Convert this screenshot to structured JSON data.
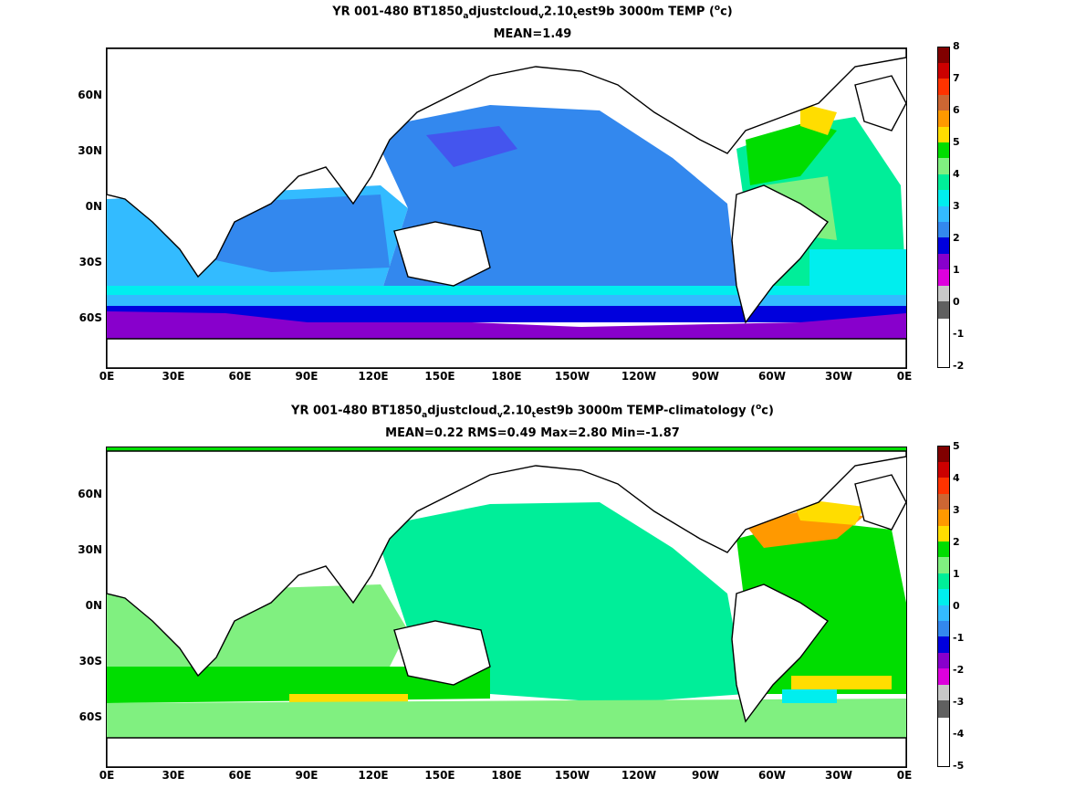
{
  "chart_data": [
    {
      "type": "heatmap",
      "title": {
        "part1": "YR 001-480 BT1850",
        "sub1": "a",
        "part2": "djustcloud",
        "sub2": "v",
        "part3": "2.10",
        "sub3": "t",
        "part4": "est9b 3000m TEMP (",
        "sup": "o",
        "part5": "c)"
      },
      "subtitle": "MEAN=1.49",
      "x_ticks": [
        "0E",
        "30E",
        "60E",
        "90E",
        "120E",
        "150E",
        "180E",
        "150W",
        "120W",
        "90W",
        "60W",
        "30W",
        "0E"
      ],
      "y_ticks": [
        "60N",
        "30N",
        "0N",
        "30S",
        "60S"
      ],
      "xlim": [
        0,
        360
      ],
      "ylim": [
        -78,
        88
      ],
      "colorbar": {
        "ticks": [
          "8",
          "7",
          "6",
          "5",
          "4",
          "3",
          "2",
          "1",
          "0",
          "-1",
          "-2"
        ],
        "range": [
          -2,
          8
        ],
        "colors": [
          "#800000",
          "#cc0000",
          "#ff3300",
          "#cc6633",
          "#ff9900",
          "#ffdd00",
          "#00dd00",
          "#80f080",
          "#00ee99",
          "#00eeee",
          "#33bbff",
          "#3388ee",
          "#0000dd",
          "#8800cc",
          "#dd00dd",
          "#c8c8c8",
          "#606060"
        ]
      },
      "field_mean": 1.49
    },
    {
      "type": "heatmap",
      "title": {
        "part1": "YR 001-480 BT1850",
        "sub1": "a",
        "part2": "djustcloud",
        "sub2": "v",
        "part3": "2.10",
        "sub3": "t",
        "part4": "est9b 3000m TEMP-climatology (",
        "sup": "o",
        "part5": "c)"
      },
      "subtitle": "MEAN=0.22   RMS=0.49   Max=2.80   Min=-1.87",
      "x_ticks": [
        "0E",
        "30E",
        "60E",
        "90E",
        "120E",
        "150E",
        "180E",
        "150W",
        "120W",
        "90W",
        "60W",
        "30W",
        "0E"
      ],
      "y_ticks": [
        "60N",
        "30N",
        "0N",
        "30S",
        "60S"
      ],
      "xlim": [
        0,
        360
      ],
      "ylim": [
        -78,
        88
      ],
      "colorbar": {
        "ticks": [
          "5",
          "4",
          "3",
          "2",
          "1",
          "0",
          "-1",
          "-2",
          "-3",
          "-4",
          "-5"
        ],
        "range": [
          -5,
          5
        ],
        "colors": [
          "#800000",
          "#cc0000",
          "#ff3300",
          "#cc6633",
          "#ff9900",
          "#ffdd00",
          "#00dd00",
          "#80f080",
          "#00ee99",
          "#00eeee",
          "#33bbff",
          "#3388ee",
          "#0000dd",
          "#8800cc",
          "#dd00dd",
          "#c8c8c8",
          "#606060"
        ]
      },
      "stats": {
        "mean": 0.22,
        "rms": 0.49,
        "max": 2.8,
        "min": -1.87
      }
    }
  ]
}
